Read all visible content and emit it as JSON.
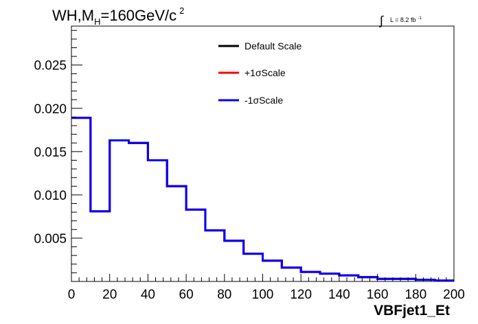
{
  "chart_data": {
    "type": "line",
    "style": "step-histogram",
    "title": {
      "main": "WH,M",
      "subscript": "H",
      "rest": "=160GeV/c",
      "superscript": "2"
    },
    "luminosity": {
      "integral_symbol": "∫",
      "text": "L = 8.2 fb",
      "superscript": "-1"
    },
    "xlabel": "VBFjet1_Et",
    "ylabel": "",
    "xlim": [
      0,
      200
    ],
    "ylim": [
      0,
      0.0295
    ],
    "x_ticks": [
      "0",
      "20",
      "40",
      "60",
      "80",
      "100",
      "120",
      "140",
      "160",
      "180",
      "200"
    ],
    "x_tick_values": [
      0,
      20,
      40,
      60,
      80,
      100,
      120,
      140,
      160,
      180,
      200
    ],
    "y_ticks": [
      "0.005",
      "0.010",
      "0.015",
      "0.020",
      "0.025"
    ],
    "y_tick_values": [
      0.005,
      0.01,
      0.015,
      0.02,
      0.025
    ],
    "grid": false,
    "legend_position": "top-center",
    "bin_edges": [
      0,
      10,
      20,
      30,
      40,
      50,
      60,
      70,
      80,
      90,
      100,
      110,
      120,
      130,
      140,
      150,
      160,
      170,
      180,
      190,
      200
    ],
    "series": [
      {
        "name": "Default Scale",
        "color": "#000000",
        "values": [
          0.0189,
          0.0081,
          0.0163,
          0.016,
          0.014,
          0.011,
          0.0083,
          0.0059,
          0.0047,
          0.0032,
          0.0024,
          0.0016,
          0.0011,
          0.0009,
          0.0007,
          0.0005,
          0.0003,
          0.0003,
          0.0002,
          0.0001
        ]
      },
      {
        "name": "+1σScale",
        "color": "#ff0000",
        "values": [
          0.0189,
          0.0081,
          0.0163,
          0.016,
          0.014,
          0.011,
          0.0083,
          0.0059,
          0.0047,
          0.0032,
          0.0024,
          0.0016,
          0.0011,
          0.0009,
          0.0007,
          0.0005,
          0.0003,
          0.0003,
          0.0002,
          0.0001
        ]
      },
      {
        "name": "-1σScale",
        "color": "#0000ff",
        "values": [
          0.0189,
          0.0081,
          0.0163,
          0.016,
          0.014,
          0.011,
          0.0083,
          0.0059,
          0.0047,
          0.0032,
          0.0024,
          0.0016,
          0.0011,
          0.0009,
          0.0007,
          0.0005,
          0.0003,
          0.0003,
          0.0002,
          0.0001
        ]
      }
    ]
  }
}
